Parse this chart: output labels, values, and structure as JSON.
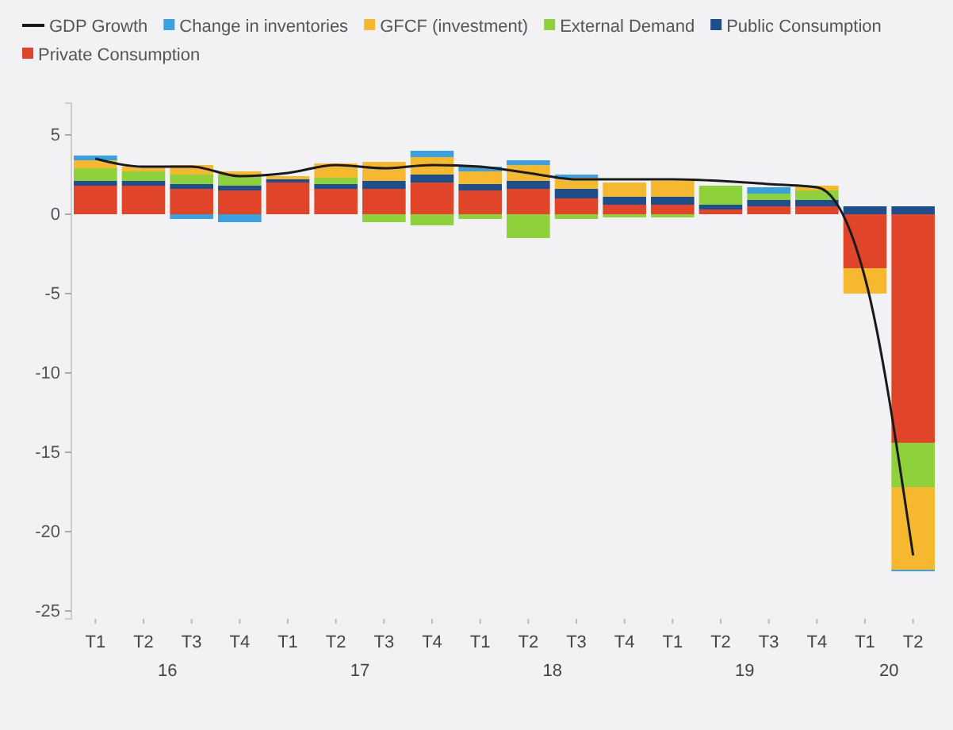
{
  "chart_data": {
    "type": "bar",
    "stacked": true,
    "categories": [
      "T1",
      "T2",
      "T3",
      "T4",
      "T1",
      "T2",
      "T3",
      "T4",
      "T1",
      "T2",
      "T3",
      "T4",
      "T1",
      "T2",
      "T3",
      "T4",
      "T1",
      "T2"
    ],
    "annotations": [
      "16",
      "17",
      "18",
      "19",
      "20"
    ],
    "series": [
      {
        "name": "Private Consumption",
        "color": "#e0452a",
        "values": [
          1.8,
          1.8,
          1.6,
          1.5,
          2.0,
          1.6,
          1.6,
          2.0,
          1.5,
          1.6,
          1.0,
          0.6,
          0.6,
          0.3,
          0.5,
          0.5,
          -3.4,
          -14.4
        ]
      },
      {
        "name": "Public Consumption",
        "color": "#1f4e8c",
        "values": [
          0.3,
          0.3,
          0.3,
          0.3,
          0.2,
          0.3,
          0.5,
          0.5,
          0.4,
          0.5,
          0.6,
          0.5,
          0.5,
          0.3,
          0.4,
          0.4,
          0.5,
          0.5
        ]
      },
      {
        "name": "External Demand",
        "color": "#8fd13a",
        "values": [
          0.8,
          0.6,
          0.6,
          0.7,
          0.0,
          0.4,
          -0.5,
          -0.7,
          -0.3,
          -1.5,
          -0.3,
          -0.2,
          -0.2,
          1.2,
          0.4,
          0.6,
          0.0,
          -2.8
        ]
      },
      {
        "name": "GFCF (investment)",
        "color": "#f5b82e",
        "values": [
          0.5,
          0.3,
          0.6,
          0.2,
          0.2,
          0.9,
          1.2,
          1.1,
          0.8,
          1.0,
          0.7,
          0.9,
          1.0,
          0.0,
          0.0,
          0.3,
          -1.6,
          -5.2
        ]
      },
      {
        "name": "Change in inventories",
        "color": "#3aa0e0",
        "values": [
          0.3,
          0.0,
          -0.3,
          -0.5,
          0.0,
          0.0,
          0.0,
          0.4,
          0.3,
          0.3,
          0.2,
          0.0,
          0.0,
          0.0,
          0.4,
          0.0,
          0.0,
          -0.1
        ]
      },
      {
        "name": "GDP Growth",
        "type": "line",
        "color": "#1a1a1a",
        "values": [
          3.5,
          3.0,
          3.0,
          2.4,
          2.6,
          3.1,
          2.9,
          3.1,
          3.0,
          2.6,
          2.2,
          2.2,
          2.2,
          2.1,
          1.9,
          1.7,
          -4.0,
          -21.5
        ]
      }
    ],
    "ylim": [
      -25.5,
      7
    ],
    "yticks": [
      5,
      0,
      -5,
      -10,
      -15,
      -20,
      -25
    ],
    "legend": "top left",
    "grid": false
  }
}
